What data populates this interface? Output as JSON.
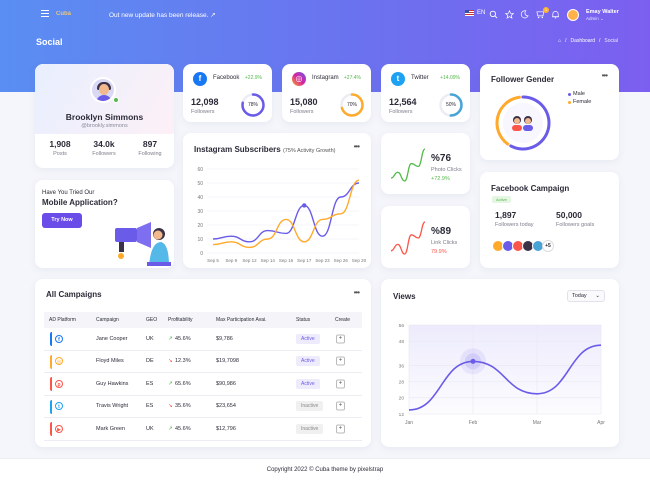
{
  "header": {
    "logo_text": "Cuba",
    "update_text": "Out new update has been release.",
    "update_arrow": "↗",
    "lang": "EN",
    "cart_count": "1",
    "user_name": "Emay Walter",
    "user_role": "Admin",
    "icons": [
      "menu-icon",
      "search-icon",
      "star-icon",
      "moon-icon",
      "cart-icon",
      "bell-icon"
    ]
  },
  "page": {
    "title": "Social",
    "breadcrumb": [
      "Dashboard",
      "Social"
    ]
  },
  "profile": {
    "name": "Brooklyn Simmons",
    "handle": "@brookly.simmons",
    "stats": [
      {
        "value": "1,908",
        "label": "Posts"
      },
      {
        "value": "34.0k",
        "label": "Followers"
      },
      {
        "value": "897",
        "label": "Following"
      }
    ]
  },
  "mobile_app": {
    "question": "Have You Tried Our",
    "title": "Mobile Application?",
    "button": "Try Now"
  },
  "social_cards": [
    {
      "name": "Facebook",
      "growth": "+22.9%",
      "value": "12,098",
      "label": "Followers",
      "percent": "78%",
      "fraction": 0.78,
      "color": "#1877f2",
      "ring": "#6a5ce8",
      "icon": "facebook-icon",
      "glyph": "f"
    },
    {
      "name": "Instagram",
      "growth": "+27.4%",
      "value": "15,080",
      "label": "Followers",
      "percent": "70%",
      "fraction": 0.7,
      "color": "#d6249f",
      "ring": "#ffaa2b",
      "icon": "instagram-icon",
      "glyph": "◎"
    },
    {
      "name": "Twitter",
      "growth": "+14.09%",
      "value": "12,564",
      "label": "Followers",
      "percent": "50%",
      "fraction": 0.5,
      "color": "#1da1f2",
      "ring": "#48a3d7",
      "icon": "twitter-icon",
      "glyph": "t"
    }
  ],
  "follower_gender": {
    "title": "Follower Gender",
    "legend": [
      {
        "label": "Male",
        "color": "#6a5ce8"
      },
      {
        "label": "Female",
        "color": "#ffaa2b"
      }
    ]
  },
  "photo_clicks": {
    "value": "%76",
    "label": "Photo Clicks",
    "growth": "+72.9%",
    "growth_color": "#54ba4a",
    "line_color": "#54ba4a"
  },
  "link_clicks": {
    "value": "%89",
    "label": "Link Clicks",
    "growth": "79.9%",
    "growth_color": "#fc564a",
    "line_color": "#fc564a"
  },
  "instagram_chart": {
    "title": "Instagram Subscribers",
    "subtitle": "(75% Activity Growth)"
  },
  "facebook_campaign": {
    "title": "Facebook Campaign",
    "badge": "Active",
    "stats": [
      {
        "value": "1,897",
        "label": "Followers today"
      },
      {
        "value": "50,000",
        "label": "Followers goals"
      }
    ],
    "more": "+5"
  },
  "campaigns": {
    "title": "All Campaigns",
    "columns": [
      "AD Platform",
      "Campaign",
      "GEO",
      "Profitability",
      "Max Participation Avai.",
      "Status",
      "Create"
    ],
    "rows": [
      {
        "platform": "facebook-icon",
        "glyph": "f",
        "color": "#1877f2",
        "campaign": "Jane Cooper",
        "geo": "UK",
        "trend": "up",
        "profit": "45.6%",
        "max": "$9,786",
        "status": "Active"
      },
      {
        "platform": "instagram-icon",
        "glyph": "◎",
        "color": "#ffaa2b",
        "campaign": "Floyd Miles",
        "geo": "DE",
        "trend": "down",
        "profit": "12.3%",
        "max": "$19,7098",
        "status": "Active"
      },
      {
        "platform": "pinterest-icon",
        "glyph": "p",
        "color": "#fc564a",
        "campaign": "Guy Hawkins",
        "geo": "ES",
        "trend": "up",
        "profit": "65.6%",
        "max": "$90,986",
        "status": "Active"
      },
      {
        "platform": "twitter-icon",
        "glyph": "t",
        "color": "#1da1f2",
        "campaign": "Travis Wright",
        "geo": "ES",
        "trend": "down",
        "profit": "35.6%",
        "max": "$23,654",
        "status": "Inactive"
      },
      {
        "platform": "youtube-icon",
        "glyph": "▶",
        "color": "#fc564a",
        "campaign": "Mark Green",
        "geo": "UK",
        "trend": "up",
        "profit": "45.6%",
        "max": "$12,796",
        "status": "Inactive"
      }
    ],
    "create_label": "+"
  },
  "views": {
    "title": "Views",
    "select": "Today"
  },
  "footer": {
    "text": "Copyright 2022 © Cuba theme by pixelstrap"
  },
  "chart_data": [
    {
      "type": "line",
      "title": "Instagram Subscribers",
      "subtitle": "(75% Activity Growth)",
      "categories": [
        "Sep 5",
        "Sep 9",
        "Sep 12",
        "Sep 14",
        "Sep 16",
        "Sep 17",
        "Sep 23",
        "Sep 26",
        "Sep 20"
      ],
      "ylim": [
        0,
        60
      ],
      "yticks": [
        0,
        10,
        20,
        30,
        40,
        50,
        60
      ],
      "series": [
        {
          "color": "#6a5ce8",
          "values": [
            10,
            12,
            8,
            16,
            14,
            34,
            12,
            40,
            50
          ]
        },
        {
          "color": "#ffaa2b",
          "values": [
            6,
            8,
            4,
            10,
            24,
            8,
            24,
            28,
            52
          ]
        }
      ],
      "grid": true
    },
    {
      "type": "area",
      "title": "Views",
      "categories": [
        "Jan",
        "Feb",
        "Mar",
        "Apr"
      ],
      "values": [
        14,
        38,
        22,
        46
      ],
      "ylim": [
        12,
        56
      ],
      "yticks": [
        12,
        20,
        28,
        36,
        48,
        56
      ],
      "highlight": {
        "category": "Feb",
        "value": 38
      },
      "color": "#6a5ce8",
      "grid": true
    },
    {
      "type": "pie",
      "title": "Follower Gender",
      "categories": [
        "Male",
        "Female"
      ],
      "values": [
        60,
        40
      ],
      "colors": [
        "#6a5ce8",
        "#ffaa2b"
      ]
    },
    {
      "type": "line",
      "title": "Photo Clicks",
      "values": [
        4,
        6,
        3,
        9,
        8,
        14
      ],
      "color": "#54ba4a"
    },
    {
      "type": "line",
      "title": "Link Clicks",
      "values": [
        3,
        5,
        2,
        8,
        7,
        12
      ],
      "color": "#fc564a"
    }
  ]
}
